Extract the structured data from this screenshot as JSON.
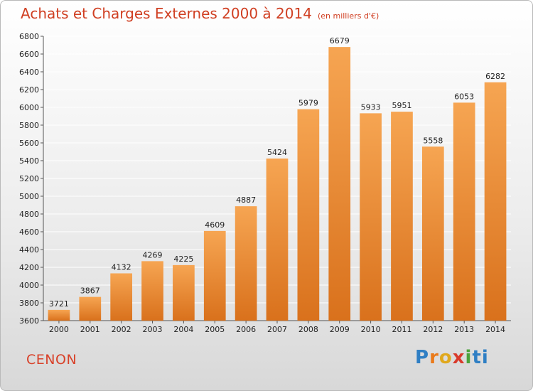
{
  "header": {
    "title": "Achats et Charges Externes 2000 à 2014",
    "subtitle": "(en milliers d'€)"
  },
  "footer": {
    "city": "CENON",
    "logo": [
      "P",
      "r",
      "o",
      "x",
      "i",
      "ti"
    ]
  },
  "colors": {
    "bar_top": "#f6a552",
    "bar_bottom": "#d9711c",
    "title": "#d03f22",
    "grid": "#ffffff"
  },
  "chart_data": {
    "type": "bar",
    "title": "Achats et Charges Externes 2000 à 2014",
    "subtitle": "(en milliers d'€)",
    "categories": [
      "2000",
      "2001",
      "2002",
      "2003",
      "2004",
      "2005",
      "2006",
      "2007",
      "2008",
      "2009",
      "2010",
      "2011",
      "2012",
      "2013",
      "2014"
    ],
    "values": [
      3721,
      3867,
      4132,
      4269,
      4225,
      4609,
      4887,
      5424,
      5979,
      6679,
      5933,
      5951,
      5558,
      6053,
      6282
    ],
    "ylim": [
      3600,
      6800
    ],
    "yticks": [
      3600,
      3800,
      4000,
      4200,
      4400,
      4600,
      4800,
      5000,
      5200,
      5400,
      5600,
      5800,
      6000,
      6200,
      6400,
      6600,
      6800
    ],
    "grid": true,
    "legend": "none"
  }
}
